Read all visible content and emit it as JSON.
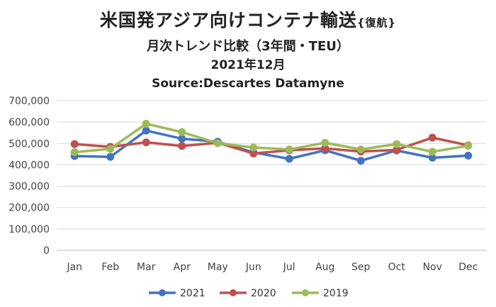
{
  "title_main": "米国発アジア向けコンテナ輸送",
  "title_main_suffix": "{復航}",
  "title_sub": "月次トレンド比較（3年間・TEU）",
  "title_date": "2021年12月",
  "title_source": "Source:Descartes Datamyne",
  "chart_data": {
    "type": "line",
    "categories": [
      "Jan",
      "Feb",
      "Mar",
      "Apr",
      "May",
      "Jun",
      "Jul",
      "Aug",
      "Sep",
      "Oct",
      "Nov",
      "Dec"
    ],
    "series": [
      {
        "name": "2021",
        "color": "#4472C4",
        "values": [
          441000,
          437000,
          560000,
          522000,
          508000,
          458000,
          428000,
          468000,
          419000,
          467000,
          433000,
          443000
        ]
      },
      {
        "name": "2020",
        "color": "#C0504D",
        "values": [
          497000,
          484000,
          505000,
          488000,
          503000,
          453000,
          468000,
          477000,
          462000,
          470000,
          527000,
          491000
        ]
      },
      {
        "name": "2019",
        "color": "#9BBB59",
        "values": [
          459000,
          475000,
          592000,
          553000,
          501000,
          481000,
          472000,
          503000,
          472000,
          497000,
          461000,
          489000
        ]
      }
    ],
    "yticks": [
      "0",
      "100,000",
      "200,000",
      "300,000",
      "400,000",
      "500,000",
      "600,000",
      "700,000"
    ],
    "ylim": [
      0,
      700000
    ],
    "grid": true,
    "legend": "bottom"
  }
}
